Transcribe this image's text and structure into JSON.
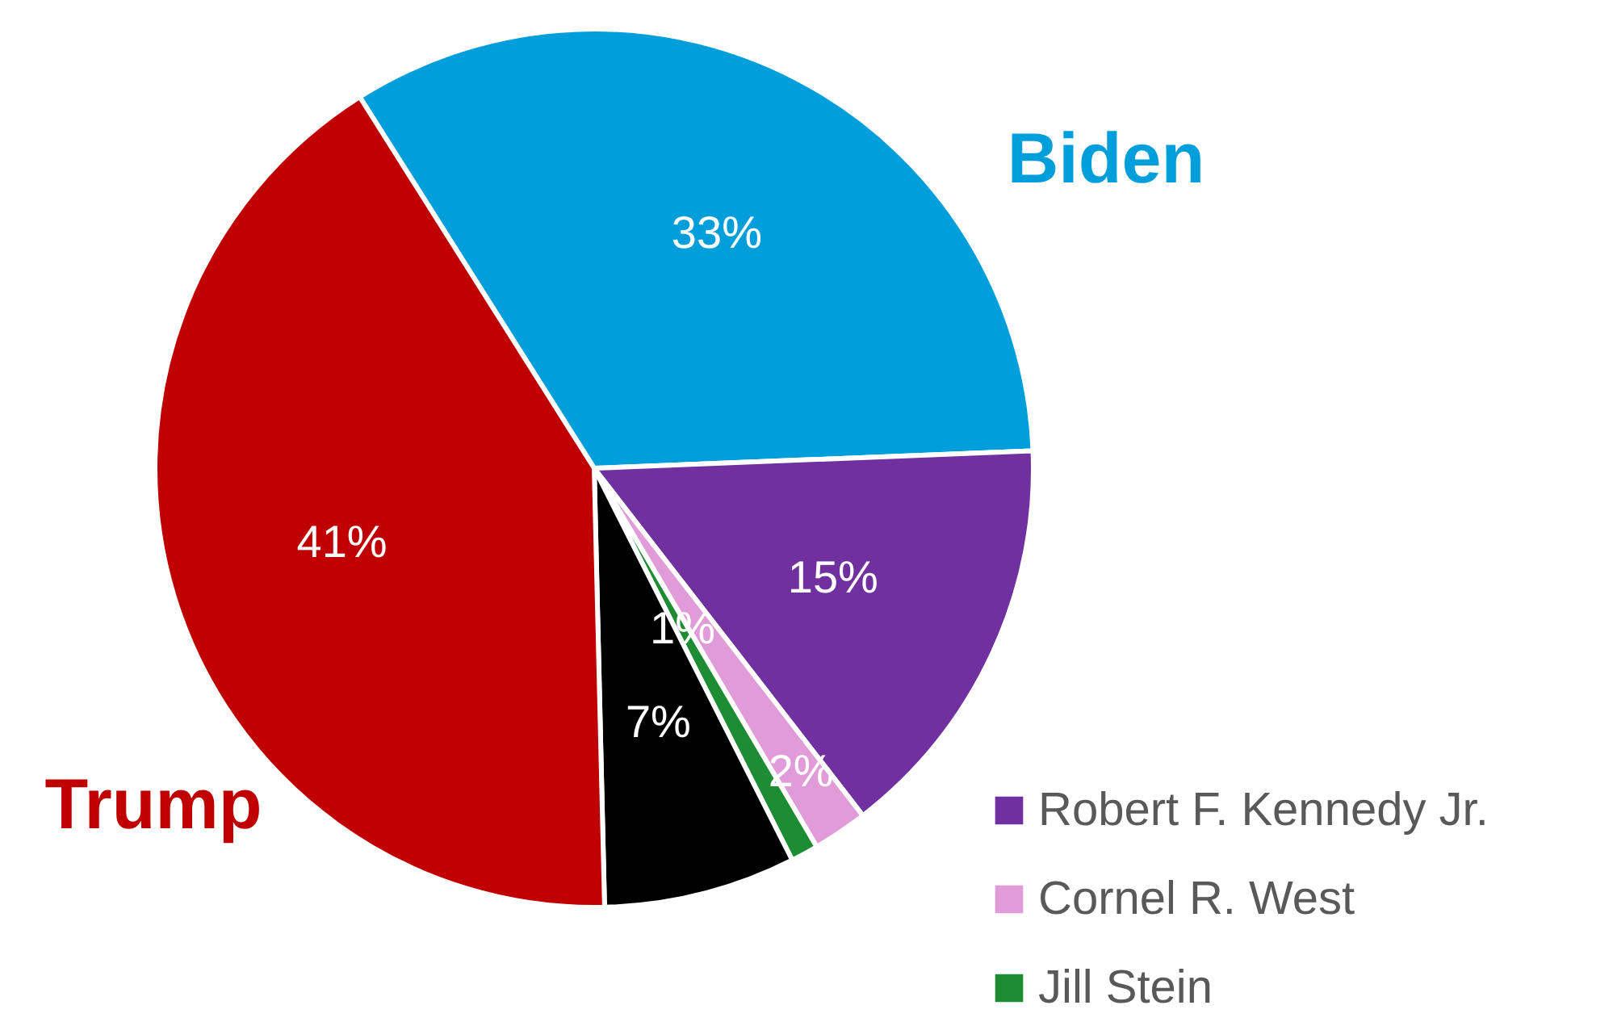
{
  "chart_data": {
    "type": "pie",
    "categories": [
      "Biden",
      "Robert F. Kennedy Jr.",
      "Cornel R. West",
      "Jill Stein",
      null,
      "Trump"
    ],
    "values": [
      33,
      15,
      2,
      1,
      7,
      41
    ],
    "colors": [
      "#009fdb",
      "#7030a0",
      "#e29bd9",
      "#1e8c32",
      "#000000",
      "#c00000"
    ],
    "value_labels": [
      "33%",
      "15%",
      "2%",
      "1%",
      "7%",
      "41%"
    ],
    "legend": "bottom right"
  }
}
